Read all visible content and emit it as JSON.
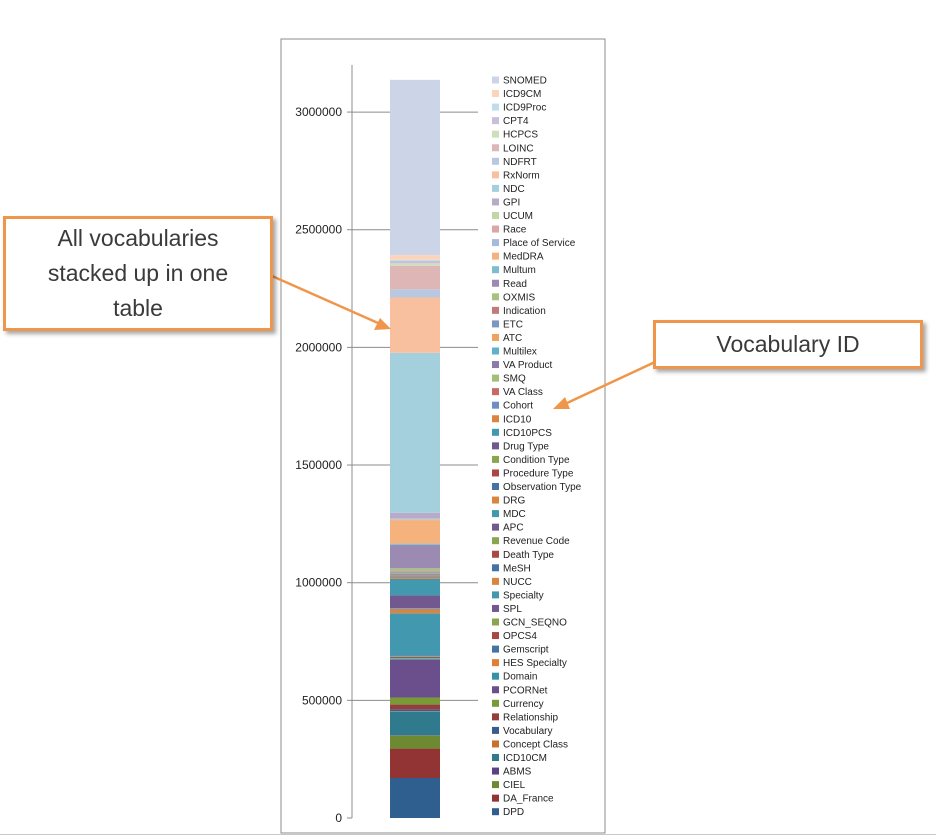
{
  "callouts": {
    "left": "All vocabularies stacked up in one table",
    "right": "Vocabulary ID"
  },
  "chart_data": {
    "type": "bar",
    "stacked": true,
    "categories": [
      ""
    ],
    "ylim": [
      0,
      3200000
    ],
    "yticks": [
      0,
      500000,
      1000000,
      1500000,
      2000000,
      2500000,
      3000000
    ],
    "ytick_labels": [
      "0",
      "500000",
      "1000000",
      "1500000",
      "2000000",
      "2500000",
      "3000000"
    ],
    "legend_position": "right",
    "series": [
      {
        "name": "DPD",
        "color": "#2f5f8f",
        "values": [
          170000
        ]
      },
      {
        "name": "DA_France",
        "color": "#923434",
        "values": [
          125000
        ]
      },
      {
        "name": "CIEL",
        "color": "#6d8a32",
        "values": [
          55000
        ]
      },
      {
        "name": "ABMS",
        "color": "#5a4380",
        "values": [
          2000
        ]
      },
      {
        "name": "ICD10CM",
        "color": "#2f7a8c",
        "values": [
          100000
        ]
      },
      {
        "name": "Concept Class",
        "color": "#c8702c",
        "values": [
          2000
        ]
      },
      {
        "name": "Vocabulary",
        "color": "#3a5c8c",
        "values": [
          8000
        ]
      },
      {
        "name": "Relationship",
        "color": "#963c3c",
        "values": [
          20000
        ]
      },
      {
        "name": "Currency",
        "color": "#7a9a38",
        "values": [
          30000
        ]
      },
      {
        "name": "PCORNet",
        "color": "#6a4f8c",
        "values": [
          160000
        ]
      },
      {
        "name": "Domain",
        "color": "#3591a8",
        "values": [
          5000
        ]
      },
      {
        "name": "HES Specialty",
        "color": "#e07f35",
        "values": [
          2000
        ]
      },
      {
        "name": "Gemscript",
        "color": "#4572a7",
        "values": [
          3000
        ]
      },
      {
        "name": "OPCS4",
        "color": "#aa4643",
        "values": [
          3000
        ]
      },
      {
        "name": "GCN_SEQNO",
        "color": "#89a54e",
        "values": [
          3000
        ]
      },
      {
        "name": "SPL",
        "color": "#71588f",
        "values": [
          2000
        ]
      },
      {
        "name": "Specialty",
        "color": "#4198af",
        "values": [
          180000
        ]
      },
      {
        "name": "NUCC",
        "color": "#db843d",
        "values": [
          15000
        ]
      },
      {
        "name": "MeSH",
        "color": "#4572a7",
        "values": [
          2000
        ]
      },
      {
        "name": "Death Type",
        "color": "#aa4643",
        "values": [
          2000
        ]
      },
      {
        "name": "Revenue Code",
        "color": "#89a54e",
        "values": [
          2000
        ]
      },
      {
        "name": "APC",
        "color": "#71588f",
        "values": [
          55000
        ]
      },
      {
        "name": "MDC",
        "color": "#4198af",
        "values": [
          70000
        ]
      },
      {
        "name": "DRG",
        "color": "#db843d",
        "values": [
          5000
        ]
      },
      {
        "name": "Observation Type",
        "color": "#4572a7",
        "values": [
          2000
        ]
      },
      {
        "name": "Procedure Type",
        "color": "#aa4643",
        "values": [
          2000
        ]
      },
      {
        "name": "Condition Type",
        "color": "#89a54e",
        "values": [
          2000
        ]
      },
      {
        "name": "Drug Type",
        "color": "#71588f",
        "values": [
          2000
        ]
      },
      {
        "name": "ICD10PCS",
        "color": "#4198af",
        "values": [
          2000
        ]
      },
      {
        "name": "ICD10",
        "color": "#db843d",
        "values": [
          2000
        ]
      },
      {
        "name": "Cohort",
        "color": "#6f8fc3",
        "values": [
          2000
        ]
      },
      {
        "name": "VA Class",
        "color": "#c86966",
        "values": [
          2000
        ]
      },
      {
        "name": "SMQ",
        "color": "#a3be77",
        "values": [
          3000
        ]
      },
      {
        "name": "VA Product",
        "color": "#8c7aa7",
        "values": [
          3000
        ]
      },
      {
        "name": "Multilex",
        "color": "#61b1c8",
        "values": [
          2000
        ]
      },
      {
        "name": "ATC",
        "color": "#efa45e",
        "values": [
          2000
        ]
      },
      {
        "name": "ETC",
        "color": "#7d97c3",
        "values": [
          2000
        ]
      },
      {
        "name": "Indication",
        "color": "#c47a77",
        "values": [
          2000
        ]
      },
      {
        "name": "OXMIS",
        "color": "#a8c283",
        "values": [
          10000
        ]
      },
      {
        "name": "Read",
        "color": "#9b8bb3",
        "values": [
          100000
        ]
      },
      {
        "name": "Multum",
        "color": "#7dbdd0",
        "values": [
          5000
        ]
      },
      {
        "name": "MedDRA",
        "color": "#f6b27d",
        "values": [
          100000
        ]
      },
      {
        "name": "Place of Service",
        "color": "#a5bbd9",
        "values": [
          2000
        ]
      },
      {
        "name": "Race",
        "color": "#dba7a5",
        "values": [
          2000
        ]
      },
      {
        "name": "UCUM",
        "color": "#c3d6a6",
        "values": [
          2000
        ]
      },
      {
        "name": "GPI",
        "color": "#b7abc9",
        "values": [
          25000
        ]
      },
      {
        "name": "NDC",
        "color": "#a4d0de",
        "values": [
          680000
        ]
      },
      {
        "name": "RxNorm",
        "color": "#f8c09e",
        "values": [
          235000
        ]
      },
      {
        "name": "NDFRT",
        "color": "#b9c8e0",
        "values": [
          35000
        ]
      },
      {
        "name": "LOINC",
        "color": "#deb6b5",
        "values": [
          100000
        ]
      },
      {
        "name": "HCPCS",
        "color": "#cee0bb",
        "values": [
          10000
        ]
      },
      {
        "name": "CPT4",
        "color": "#c9bfdb",
        "values": [
          10000
        ]
      },
      {
        "name": "ICD9Proc",
        "color": "#bddeea",
        "values": [
          5000
        ]
      },
      {
        "name": "ICD9CM",
        "color": "#fbd4bc",
        "values": [
          20000
        ]
      },
      {
        "name": "SNOMED",
        "color": "#ccd5e7",
        "values": [
          745000
        ]
      }
    ]
  }
}
